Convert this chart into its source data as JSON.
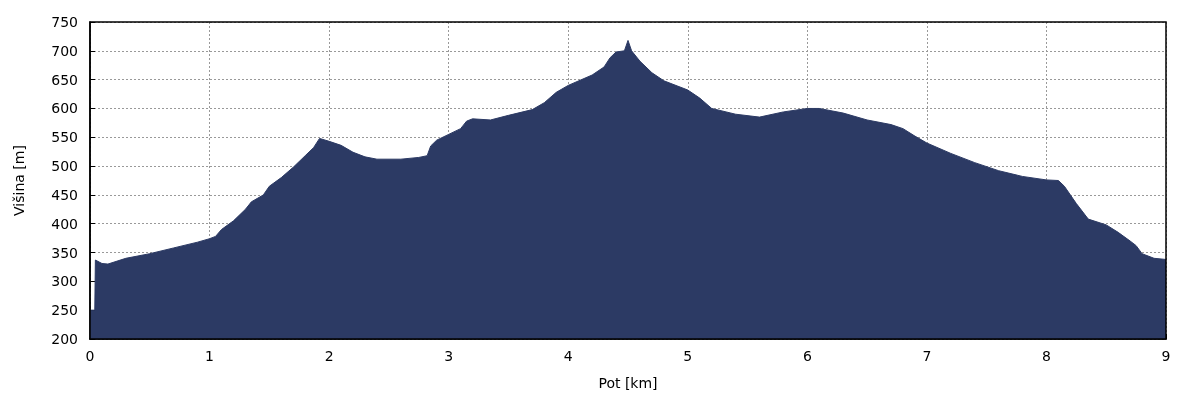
{
  "chart_data": {
    "type": "area",
    "xlabel": "Pot [km]",
    "ylabel": "Višina [m]",
    "x": [
      0,
      0.04,
      0.045,
      0.1,
      0.15,
      0.3,
      0.5,
      0.7,
      0.9,
      1.0,
      1.05,
      1.1,
      1.2,
      1.3,
      1.35,
      1.45,
      1.5,
      1.6,
      1.7,
      1.8,
      1.87,
      1.92,
      2.0,
      2.1,
      2.2,
      2.3,
      2.4,
      2.6,
      2.75,
      2.82,
      2.85,
      2.9,
      3.0,
      3.1,
      3.15,
      3.2,
      3.35,
      3.5,
      3.7,
      3.8,
      3.9,
      4.0,
      4.2,
      4.3,
      4.35,
      4.4,
      4.47,
      4.5,
      4.53,
      4.6,
      4.7,
      4.8,
      5.0,
      5.1,
      5.2,
      5.4,
      5.6,
      5.8,
      6.0,
      6.1,
      6.3,
      6.5,
      6.7,
      6.8,
      6.9,
      7.0,
      7.2,
      7.4,
      7.6,
      7.8,
      8.0,
      8.1,
      8.15,
      8.25,
      8.35,
      8.5,
      8.6,
      8.7,
      8.75,
      8.8,
      8.9,
      9.0
    ],
    "series": [
      {
        "color": "#2c3a64",
        "values": [
          250,
          250,
          337,
          331,
          330,
          340,
          348,
          358,
          368,
          374,
          378,
          390,
          405,
          425,
          438,
          450,
          465,
          480,
          498,
          518,
          532,
          548,
          543,
          536,
          524,
          516,
          512,
          512,
          515,
          518,
          535,
          545,
          555,
          565,
          578,
          582,
          580,
          588,
          598,
          610,
          628,
          640,
          658,
          672,
          688,
          698,
          700,
          718,
          700,
          682,
          662,
          648,
          632,
          618,
          600,
          590,
          585,
          594,
          600,
          600,
          592,
          580,
          572,
          565,
          552,
          540,
          522,
          506,
          492,
          482,
          476,
          475,
          465,
          435,
          408,
          398,
          385,
          370,
          362,
          348,
          340,
          338
        ]
      }
    ],
    "xlim": [
      0,
      9
    ],
    "xticks": [
      0,
      1,
      2,
      3,
      4,
      5,
      6,
      7,
      8,
      9
    ],
    "ylim": [
      200,
      750
    ],
    "yticks": [
      200,
      250,
      300,
      350,
      400,
      450,
      500,
      550,
      600,
      650,
      700,
      750
    ],
    "grid": true
  }
}
